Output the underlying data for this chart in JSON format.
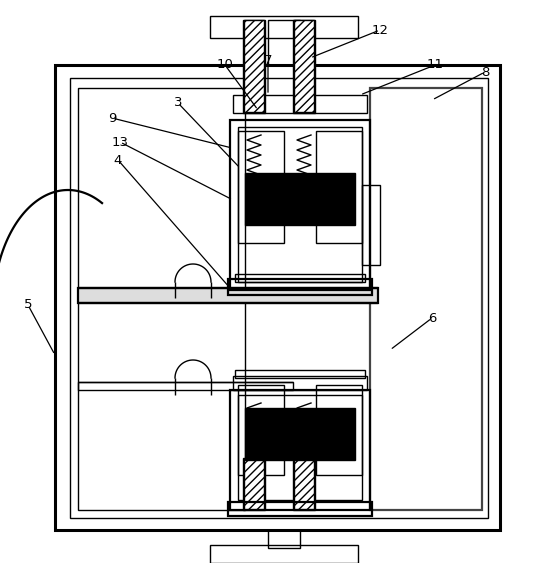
{
  "bg_color": "#ffffff",
  "line_color": "#000000",
  "lw": 1.0,
  "lw2": 1.6,
  "lw3": 2.2
}
